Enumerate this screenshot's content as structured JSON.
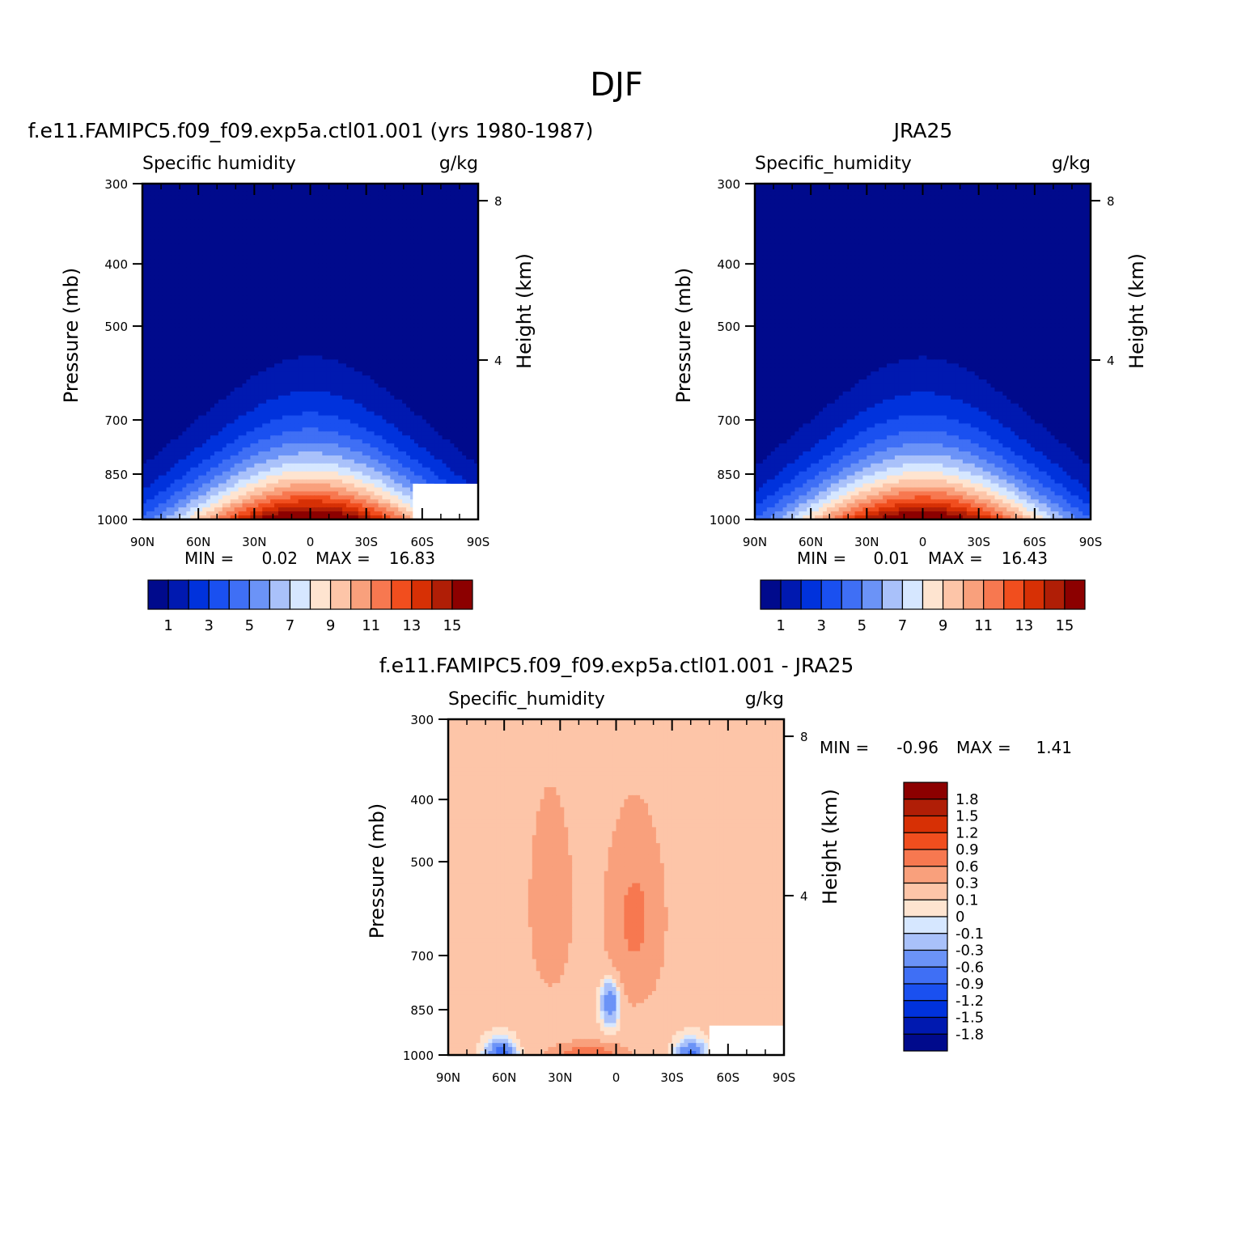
{
  "figure": {
    "title": "DJF"
  },
  "chart_data": [
    {
      "type": "heatmap",
      "title": "f.e11.FAMIPC5.f09_f09.exp5a.ctl01.001 (yrs 1980-1987)",
      "left_subtitle": "Specific humidity",
      "right_subtitle": "g/kg",
      "xlabel": "",
      "ylabel": "Pressure (mb)",
      "y2label": "Height (km)",
      "x_ticks": [
        "90N",
        "60N",
        "30N",
        "0",
        "30S",
        "60S",
        "90S"
      ],
      "x_values": [
        90,
        60,
        30,
        0,
        -30,
        -60,
        -90
      ],
      "y_ticks": [
        "300",
        "400",
        "500",
        "700",
        "850",
        "1000"
      ],
      "y_values": [
        300,
        400,
        500,
        700,
        850,
        1000
      ],
      "y_scale": "log-pressure",
      "y2_ticks": [
        "8",
        "4"
      ],
      "y2_values": [
        8,
        4
      ],
      "min_label": "MIN =",
      "min_value": "0.02",
      "max_label": "MAX =",
      "max_value": "16.83",
      "colorbar_labels": [
        "1",
        "3",
        "5",
        "7",
        "9",
        "11",
        "13",
        "15"
      ],
      "colorbar_levels": [
        1,
        2,
        3,
        4,
        5,
        6,
        7,
        8,
        9,
        10,
        11,
        12,
        13,
        14,
        15
      ],
      "peak_latitude": 0,
      "peak_value": 16.83,
      "missing_region": {
        "lat_range": [
          -55,
          -90
        ],
        "p_range": [
          880,
          1000
        ]
      }
    },
    {
      "type": "heatmap",
      "title": "JRA25",
      "left_subtitle": "Specific_humidity",
      "right_subtitle": "g/kg",
      "xlabel": "",
      "ylabel": "Pressure (mb)",
      "y2label": "Height (km)",
      "x_ticks": [
        "90N",
        "60N",
        "30N",
        "0",
        "30S",
        "60S",
        "90S"
      ],
      "x_values": [
        90,
        60,
        30,
        0,
        -30,
        -60,
        -90
      ],
      "y_ticks": [
        "300",
        "400",
        "500",
        "700",
        "850",
        "1000"
      ],
      "y_values": [
        300,
        400,
        500,
        700,
        850,
        1000
      ],
      "y_scale": "log-pressure",
      "y2_ticks": [
        "8",
        "4"
      ],
      "y2_values": [
        8,
        4
      ],
      "min_label": "MIN =",
      "min_value": "0.01",
      "max_label": "MAX =",
      "max_value": "16.43",
      "colorbar_labels": [
        "1",
        "3",
        "5",
        "7",
        "9",
        "11",
        "13",
        "15"
      ],
      "colorbar_levels": [
        1,
        2,
        3,
        4,
        5,
        6,
        7,
        8,
        9,
        10,
        11,
        12,
        13,
        14,
        15
      ],
      "peak_latitude": 0,
      "peak_value": 16.43
    },
    {
      "type": "heatmap",
      "title": "f.e11.FAMIPC5.f09_f09.exp5a.ctl01.001 - JRA25",
      "left_subtitle": "Specific_humidity",
      "right_subtitle": "g/kg",
      "xlabel": "",
      "ylabel": "Pressure (mb)",
      "y2label": "Height (km)",
      "x_ticks": [
        "90N",
        "60N",
        "30N",
        "0",
        "30S",
        "60S",
        "90S"
      ],
      "x_values": [
        90,
        60,
        30,
        0,
        -30,
        -60,
        -90
      ],
      "y_ticks": [
        "300",
        "400",
        "500",
        "700",
        "850",
        "1000"
      ],
      "y_values": [
        300,
        400,
        500,
        700,
        850,
        1000
      ],
      "y_scale": "log-pressure",
      "y2_ticks": [
        "8",
        "4"
      ],
      "y2_values": [
        8,
        4
      ],
      "min_label": "MIN =",
      "min_value": "-0.96",
      "max_label": "MAX =",
      "max_value": "1.41",
      "colorbar_labels": [
        "1.8",
        "1.5",
        "1.2",
        "0.9",
        "0.6",
        "0.3",
        "0.1",
        "0",
        "-0.1",
        "-0.3",
        "-0.6",
        "-0.9",
        "-1.2",
        "-1.5",
        "-1.8"
      ],
      "missing_region": {
        "lat_range": [
          -50,
          -90
        ],
        "p_range": [
          900,
          1000
        ]
      }
    }
  ],
  "colors": {
    "seq": [
      "#000a8c",
      "#0019b0",
      "#0032dc",
      "#1a50f0",
      "#3f6ff5",
      "#6b93f7",
      "#a9c1fa",
      "#d6e7ff",
      "#fee4d0",
      "#fdc5a8",
      "#f9a07c",
      "#f77850",
      "#f14e1e",
      "#d73005",
      "#b01e06",
      "#8c0000"
    ],
    "diff": [
      "#8c0000",
      "#b01e06",
      "#d73005",
      "#f14e1e",
      "#f77850",
      "#f9a07c",
      "#fdc5a8",
      "#fee4d0",
      "#d6e7ff",
      "#a9c1fa",
      "#6b93f7",
      "#3f6ff5",
      "#1a50f0",
      "#0032dc",
      "#0019b0",
      "#000a8c"
    ]
  }
}
